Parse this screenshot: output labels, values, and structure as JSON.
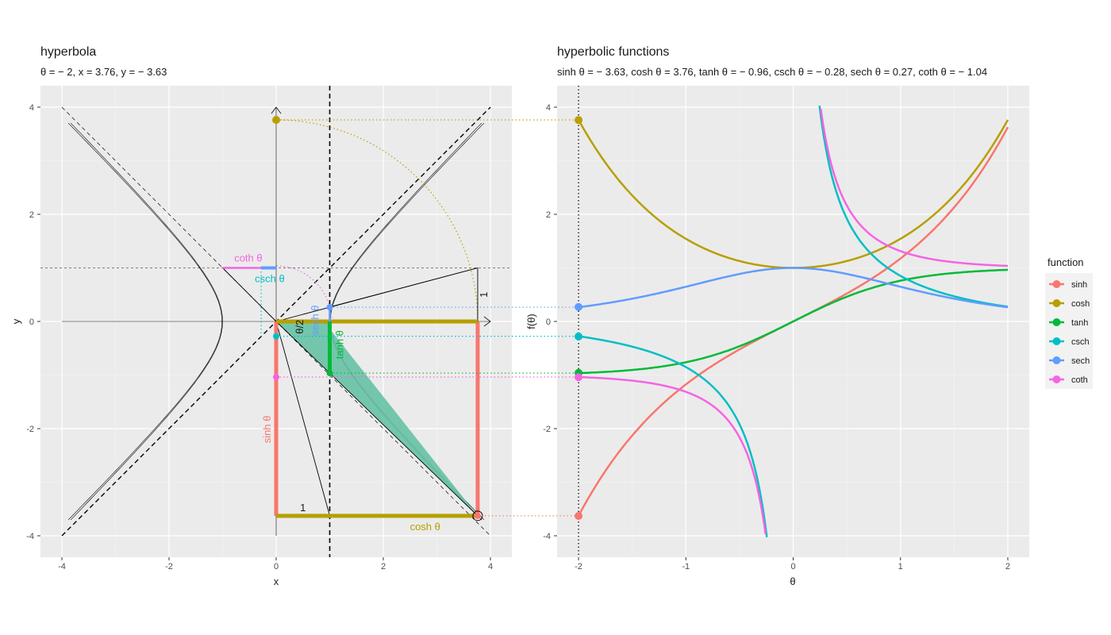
{
  "chart_data": [
    {
      "type": "line",
      "title": "hyperbola",
      "subtitle": "θ = − 2, x = 3.76, y = − 3.63",
      "xlabel": "x",
      "ylabel": "y",
      "xlim": [
        -4.4,
        4.4
      ],
      "ylim": [
        -4.4,
        4.4
      ],
      "xticks": [
        -4,
        -2,
        0,
        2,
        4
      ],
      "yticks": [
        -4,
        -2,
        0,
        2,
        4
      ],
      "xtick_labels": [
        "-4",
        "-2",
        "0",
        "2",
        "4"
      ],
      "ytick_labels": [
        "-4",
        "-2",
        "0",
        "2",
        "4"
      ],
      "grid": true,
      "theta": -2,
      "x": 3.76,
      "y": -3.63,
      "annotations": {
        "coth": "coth θ",
        "csch": "csch θ",
        "sinh": "sinh θ",
        "cosh": "cosh θ",
        "tanh": "tanh θ",
        "sech": "sech θ",
        "one_bottom": "1",
        "one_right": "1",
        "theta_half": "θ/2"
      }
    },
    {
      "type": "line",
      "title": "hyperbolic functions",
      "subtitle": "sinh θ = − 3.63, cosh θ = 3.76, tanh θ = − 0.96, csch θ = − 0.28, sech θ = 0.27, coth θ = − 1.04",
      "xlabel": "θ",
      "ylabel": "f(θ)",
      "xlim": [
        -2.2,
        2.2
      ],
      "ylim": [
        -4.4,
        4.4
      ],
      "xticks": [
        -2,
        -1,
        0,
        1,
        2
      ],
      "yticks": [
        -4,
        -2,
        0,
        2,
        4
      ],
      "xtick_labels": [
        "-2",
        "-1",
        "0",
        "1",
        "2"
      ],
      "ytick_labels": [
        "-4",
        "-2",
        "0",
        "2",
        "4"
      ],
      "grid": true,
      "theta_marker": -2,
      "series": [
        {
          "name": "sinh",
          "color": "#F8766D",
          "marker_value": -3.63
        },
        {
          "name": "cosh",
          "color": "#B79F00",
          "marker_value": 3.76
        },
        {
          "name": "tanh",
          "color": "#00BA38",
          "marker_value": -0.96
        },
        {
          "name": "csch",
          "color": "#00BFC4",
          "marker_value": -0.28
        },
        {
          "name": "sech",
          "color": "#619CFF",
          "marker_value": 0.27
        },
        {
          "name": "coth",
          "color": "#F564E3",
          "marker_value": -1.04
        }
      ],
      "legend": {
        "title": "function",
        "position": "right"
      }
    }
  ]
}
